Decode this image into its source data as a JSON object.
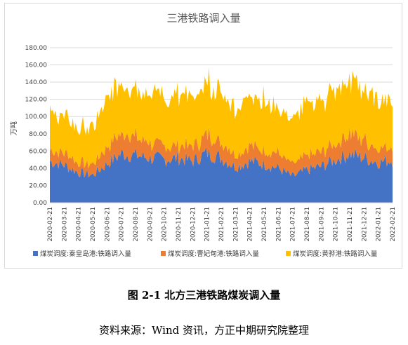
{
  "figure_caption": "图 2-1 北方三港铁路煤炭调入量",
  "source_note": "资料来源：Wind 资讯，方正中期研究院整理",
  "chart_data": {
    "type": "area",
    "stacked": true,
    "title": "三港铁路调入量",
    "ylabel": "万吨",
    "xlabel": "",
    "ylim": [
      0,
      180
    ],
    "y_ticks": [
      "0.00",
      "20.00",
      "40.00",
      "60.00",
      "80.00",
      "100.00",
      "120.00",
      "140.00",
      "160.00",
      "180.00"
    ],
    "grid": true,
    "legend": "bottom",
    "x_ticks": [
      "2020-02-21",
      "2020-03-21",
      "2020-04-21",
      "2020-05-21",
      "2020-06-21",
      "2020-07-21",
      "2020-08-21",
      "2020-09-21",
      "2020-10-21",
      "2020-11-21",
      "2020-12-21",
      "2021-01-21",
      "2021-02-21",
      "2021-03-21",
      "2021-04-21",
      "2021-05-21",
      "2021-06-21",
      "2021-07-21",
      "2021-08-21",
      "2021-09-21",
      "2021-10-21",
      "2021-11-21",
      "2021-12-21",
      "2022-01-21",
      "2022-02-21"
    ],
    "series": [
      {
        "name": "煤炭调度:秦皇岛港:铁路调入量",
        "color": "#4472c4",
        "values": [
          48,
          44,
          35,
          32,
          45,
          57,
          55,
          52,
          50,
          52,
          48,
          58,
          52,
          42,
          48,
          45,
          40,
          30,
          38,
          42,
          50,
          57,
          52,
          47,
          50
        ]
      },
      {
        "name": "煤炭调度:曹妃甸港:铁路调入量",
        "color": "#ed7d31",
        "values": [
          14,
          14,
          12,
          12,
          20,
          24,
          22,
          18,
          16,
          16,
          16,
          22,
          20,
          16,
          18,
          16,
          18,
          15,
          16,
          16,
          20,
          24,
          22,
          18,
          16
        ]
      },
      {
        "name": "煤炭调度:黄骅港:铁路调入量",
        "color": "#ffc000",
        "values": [
          46,
          42,
          40,
          42,
          55,
          60,
          58,
          58,
          56,
          58,
          54,
          60,
          58,
          56,
          60,
          60,
          52,
          50,
          58,
          60,
          62,
          62,
          58,
          58,
          56
        ]
      }
    ]
  }
}
